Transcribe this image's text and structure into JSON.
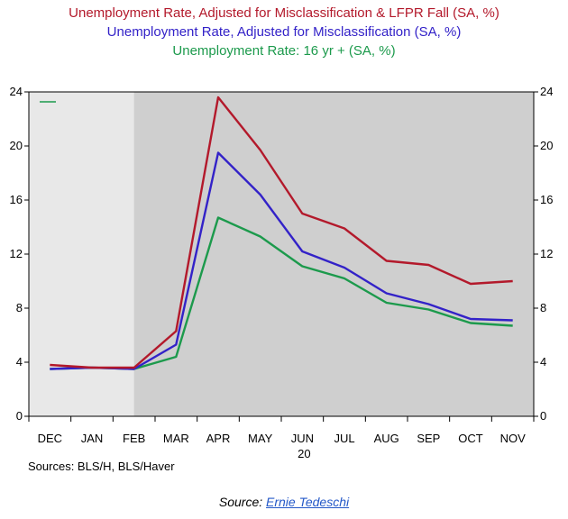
{
  "titles": [
    {
      "text": "Unemployment Rate, Adjusted for Misclassification & LFPR Fall  (SA, %)",
      "color": "#b3192b"
    },
    {
      "text": "Unemployment Rate, Adjusted for Misclassification (SA, %)",
      "color": "#3322c8"
    },
    {
      "text": "Unemployment Rate: 16 yr + (SA, %)",
      "color": "#1c9a4c"
    }
  ],
  "sources_text": "Sources:  BLS/H, BLS/Haver",
  "credit": {
    "prefix": "Source: ",
    "link_text": "Ernie Tedeschi"
  },
  "colors": {
    "plot_light": "#e8e8e8",
    "plot_dark": "#cfcfcf"
  },
  "chart_data": {
    "type": "line",
    "categories": [
      "DEC",
      "JAN",
      "FEB",
      "MAR",
      "APR",
      "MAY",
      "JUN",
      "JUL",
      "AUG",
      "SEP",
      "OCT",
      "NOV"
    ],
    "year_label": "20",
    "ylim": [
      0,
      24
    ],
    "yticks": [
      0,
      4,
      8,
      12,
      16,
      20,
      24
    ],
    "shaded_from": "FEB",
    "series": [
      {
        "name": "Unemployment Rate, Adjusted for Misclassification & LFPR Fall  (SA, %)",
        "color": "#b3192b",
        "values": [
          3.8,
          3.6,
          3.6,
          6.3,
          23.6,
          19.7,
          15.0,
          13.9,
          11.5,
          11.2,
          9.8,
          10.0
        ]
      },
      {
        "name": "Unemployment Rate, Adjusted for Misclassification (SA, %)",
        "color": "#3322c8",
        "values": [
          3.5,
          3.6,
          3.5,
          5.3,
          19.5,
          16.4,
          12.2,
          11.0,
          9.1,
          8.3,
          7.2,
          7.1
        ]
      },
      {
        "name": "Unemployment Rate: 16 yr + (SA, %)",
        "color": "#1c9a4c",
        "values": [
          3.5,
          3.6,
          3.5,
          4.4,
          14.7,
          13.3,
          11.1,
          10.2,
          8.4,
          7.9,
          6.9,
          6.7
        ]
      }
    ]
  }
}
